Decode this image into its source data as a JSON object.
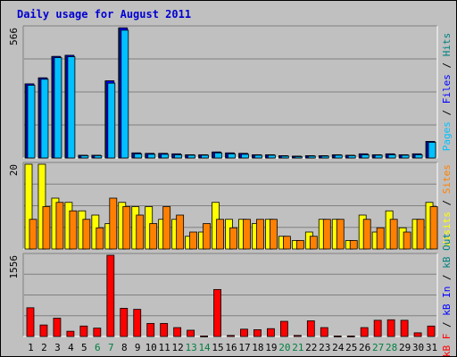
{
  "title": "Daily usage for August 2011",
  "chart_data": [
    {
      "type": "bar",
      "panel": "hits-files-pages",
      "scale_label": "566",
      "ylim": [
        0,
        566
      ],
      "categories": [
        "1",
        "2",
        "3",
        "4",
        "5",
        "6",
        "7",
        "8",
        "9",
        "10",
        "11",
        "12",
        "13",
        "14",
        "15",
        "16",
        "17",
        "18",
        "19",
        "20",
        "21",
        "22",
        "23",
        "24",
        "25",
        "26",
        "27",
        "28",
        "29",
        "30",
        "31"
      ],
      "weekend_days": [
        "6",
        "7",
        "13",
        "14",
        "20",
        "21",
        "27",
        "28"
      ],
      "legend": [
        {
          "text": "Pages",
          "color": "#00c0ff"
        },
        {
          "text": " / ",
          "color": "#000000"
        },
        {
          "text": "Files",
          "color": "#0000ff"
        },
        {
          "text": " / ",
          "color": "#000000"
        },
        {
          "text": "Hits",
          "color": "#008080"
        }
      ],
      "series": [
        {
          "name": "Hits",
          "color": "#008080",
          "values": [
            322,
            348,
            441,
            446,
            12,
            12,
            335,
            565,
            22,
            20,
            20,
            18,
            14,
            14,
            26,
            22,
            20,
            14,
            14,
            10,
            8,
            10,
            10,
            14,
            12,
            18,
            14,
            18,
            14,
            18,
            72
          ]
        },
        {
          "name": "Files",
          "color": "#0000ff",
          "values": [
            322,
            348,
            441,
            446,
            12,
            12,
            335,
            565,
            22,
            20,
            20,
            18,
            14,
            14,
            26,
            22,
            20,
            14,
            14,
            10,
            8,
            10,
            10,
            14,
            12,
            18,
            14,
            18,
            14,
            18,
            72
          ]
        },
        {
          "name": "Pages",
          "color": "#00c0ff",
          "values": [
            316,
            342,
            436,
            440,
            10,
            10,
            325,
            555,
            18,
            16,
            16,
            14,
            12,
            12,
            22,
            18,
            16,
            12,
            12,
            8,
            6,
            8,
            8,
            12,
            10,
            14,
            12,
            14,
            12,
            14,
            68
          ]
        }
      ]
    },
    {
      "type": "bar",
      "panel": "visits-sites",
      "scale_label": "20",
      "ylim": [
        0,
        20
      ],
      "categories": [
        "1",
        "2",
        "3",
        "4",
        "5",
        "6",
        "7",
        "8",
        "9",
        "10",
        "11",
        "12",
        "13",
        "14",
        "15",
        "16",
        "17",
        "18",
        "19",
        "20",
        "21",
        "22",
        "23",
        "24",
        "25",
        "26",
        "27",
        "28",
        "29",
        "30",
        "31"
      ],
      "legend": [
        {
          "text": "Visits",
          "color": "#ffff00"
        },
        {
          "text": " / ",
          "color": "#000000"
        },
        {
          "text": "Sites",
          "color": "#ff8000"
        }
      ],
      "series": [
        {
          "name": "Visits",
          "color": "#ffff00",
          "values": [
            20,
            20,
            12,
            11,
            9,
            8,
            6,
            11,
            10,
            10,
            7,
            7,
            3,
            4,
            11,
            7,
            7,
            6,
            7,
            3,
            2,
            4,
            7,
            7,
            2,
            8,
            4,
            9,
            5,
            7,
            11
          ]
        },
        {
          "name": "Sites",
          "color": "#ff8000",
          "values": [
            7,
            10,
            11,
            9,
            7,
            5,
            12,
            10,
            8,
            6,
            10,
            8,
            4,
            6,
            7,
            5,
            7,
            7,
            7,
            3,
            2,
            3,
            7,
            7,
            2,
            7,
            5,
            7,
            4,
            7,
            10
          ]
        }
      ]
    },
    {
      "type": "bar",
      "panel": "kbytes",
      "scale_label": "1556",
      "ylim": [
        0,
        1556
      ],
      "categories": [
        "1",
        "2",
        "3",
        "4",
        "5",
        "6",
        "7",
        "8",
        "9",
        "10",
        "11",
        "12",
        "13",
        "14",
        "15",
        "16",
        "17",
        "18",
        "19",
        "20",
        "21",
        "22",
        "23",
        "24",
        "25",
        "26",
        "27",
        "28",
        "29",
        "30",
        "31"
      ],
      "legend": [
        {
          "text": "kB F",
          "color": "#ff0000"
        },
        {
          "text": " / ",
          "color": "#000000"
        },
        {
          "text": "kB In",
          "color": "#0000ff"
        },
        {
          "text": " / ",
          "color": "#000000"
        },
        {
          "text": "kB Out",
          "color": "#008080"
        }
      ],
      "series": [
        {
          "name": "kB F",
          "color": "#ff0000",
          "values": [
            550,
            220,
            350,
            100,
            200,
            160,
            1556,
            540,
            520,
            250,
            250,
            170,
            120,
            10,
            900,
            20,
            140,
            130,
            150,
            290,
            20,
            300,
            170,
            10,
            10,
            170,
            310,
            320,
            310,
            70,
            200
          ]
        }
      ]
    }
  ]
}
